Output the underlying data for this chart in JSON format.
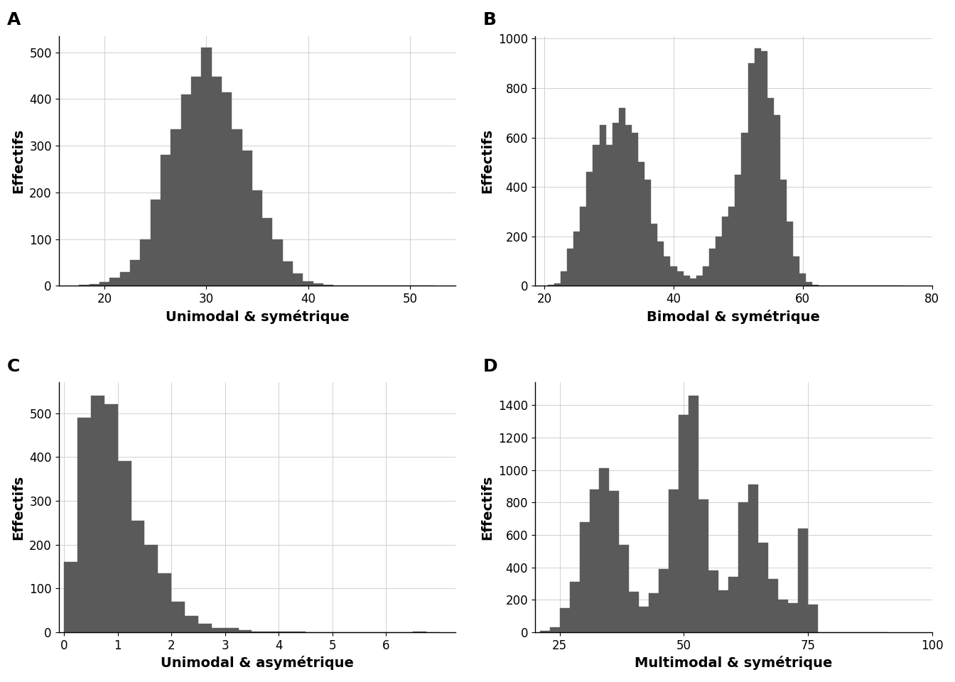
{
  "bar_color": "#5a5a5a",
  "bar_edgecolor": "#5a5a5a",
  "background_color": "#ffffff",
  "grid_color": "#d0d0d0",
  "ylabel": "Effectifs",
  "label_fontsize": 14,
  "tick_fontsize": 12,
  "panel_label_fontsize": 18,
  "A": {
    "label": "A",
    "xlabel": "Unimodal & symétrique",
    "centers": [
      18,
      19,
      20,
      21,
      22,
      23,
      24,
      25,
      26,
      27,
      28,
      29,
      30,
      31,
      32,
      33,
      34,
      35,
      36,
      37,
      38,
      39,
      40,
      41,
      42,
      43,
      44,
      45,
      46,
      47,
      48,
      49,
      50,
      51,
      52
    ],
    "heights": [
      2,
      4,
      8,
      18,
      30,
      55,
      100,
      185,
      280,
      335,
      410,
      448,
      510,
      448,
      415,
      335,
      290,
      205,
      145,
      100,
      52,
      27,
      10,
      5,
      2,
      1,
      0,
      0,
      0,
      0,
      0,
      0,
      0,
      0,
      0
    ],
    "bar_width": 1.0,
    "xlim": [
      15.5,
      54.5
    ],
    "ylim": [
      0,
      535
    ],
    "xticks": [
      20,
      30,
      40,
      50
    ]
  },
  "B": {
    "label": "B",
    "xlabel": "Bimodal & symétrique",
    "centers": [
      21,
      22,
      23,
      24,
      25,
      26,
      27,
      28,
      29,
      30,
      31,
      32,
      33,
      34,
      35,
      36,
      37,
      38,
      39,
      40,
      41,
      42,
      43,
      44,
      45,
      46,
      47,
      48,
      49,
      50,
      51,
      52,
      53,
      54,
      55,
      56,
      57,
      58,
      59,
      60,
      61,
      62,
      63,
      64,
      65,
      66,
      67,
      68,
      69,
      70,
      71,
      72,
      73,
      74,
      75
    ],
    "heights": [
      5,
      10,
      60,
      150,
      220,
      320,
      460,
      570,
      650,
      570,
      660,
      720,
      650,
      620,
      500,
      430,
      250,
      180,
      120,
      80,
      60,
      40,
      30,
      40,
      80,
      150,
      200,
      280,
      320,
      450,
      620,
      900,
      960,
      950,
      760,
      690,
      430,
      260,
      120,
      50,
      15,
      5,
      0,
      0,
      0,
      0,
      0,
      0,
      0,
      0,
      0,
      0,
      0,
      0,
      0
    ],
    "bar_width": 1.0,
    "xlim": [
      18.5,
      78.5
    ],
    "ylim": [
      0,
      1010
    ],
    "xticks": [
      20,
      40,
      60,
      80
    ]
  },
  "C": {
    "label": "C",
    "xlabel": "Unimodal & asymétrique",
    "centers": [
      0.125,
      0.375,
      0.625,
      0.875,
      1.125,
      1.375,
      1.625,
      1.875,
      2.125,
      2.375,
      2.625,
      2.875,
      3.125,
      3.375,
      3.625,
      3.875,
      4.125,
      4.375,
      4.625,
      4.875,
      5.125,
      5.375,
      5.625,
      5.875,
      6.125,
      6.375,
      6.625,
      6.875
    ],
    "heights": [
      160,
      490,
      540,
      520,
      390,
      255,
      200,
      135,
      70,
      38,
      20,
      10,
      10,
      5,
      2,
      1,
      1,
      1,
      0,
      0,
      0,
      0,
      0,
      0,
      0,
      0,
      1,
      0
    ],
    "bar_width": 0.25,
    "xlim": [
      -0.1,
      7.3
    ],
    "ylim": [
      0,
      570
    ],
    "xticks": [
      0,
      1,
      2,
      3,
      4,
      5,
      6
    ]
  },
  "D": {
    "label": "D",
    "xlabel": "Multimodal & symétrique",
    "centers": [
      22,
      24,
      26,
      28,
      30,
      32,
      34,
      36,
      38,
      40,
      42,
      44,
      46,
      48,
      50,
      52,
      54,
      56,
      58,
      60,
      62,
      64,
      66,
      68,
      70,
      72,
      74,
      76,
      78,
      80,
      82,
      84,
      86,
      88,
      90
    ],
    "heights": [
      10,
      30,
      150,
      310,
      680,
      880,
      1010,
      870,
      540,
      250,
      160,
      240,
      390,
      880,
      1340,
      1460,
      820,
      380,
      260,
      340,
      800,
      910,
      550,
      330,
      200,
      180,
      640,
      170,
      0,
      0,
      0,
      0,
      0,
      0,
      0
    ],
    "bar_width": 2.0,
    "xlim": [
      20.0,
      100.0
    ],
    "ylim": [
      0,
      1540
    ],
    "xticks": [
      25,
      50,
      75,
      100
    ]
  }
}
